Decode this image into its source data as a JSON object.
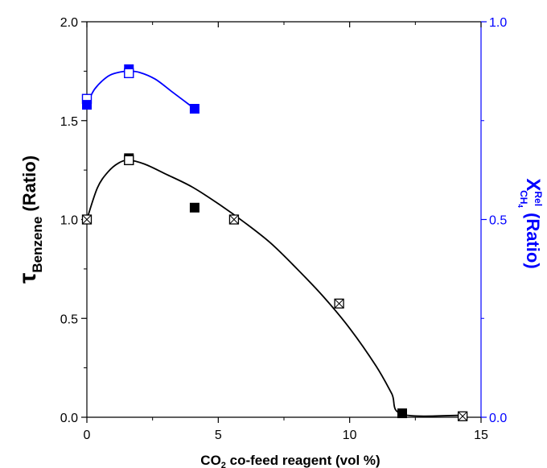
{
  "chart_data": {
    "type": "scatter",
    "xlabel": {
      "main": "CO",
      "sub": "2",
      "rest": " co-feed reagent (vol %)"
    },
    "ylabel_left": {
      "sym": "τ",
      "sub": "Benzene",
      "rest": " (Ratio)"
    },
    "ylabel_right": {
      "sym": "X",
      "sup": "Rel",
      "sub": "CH",
      "subsub": "4",
      "rest": " (Ratio)"
    },
    "xlim": [
      0,
      15
    ],
    "ylim_left": [
      0,
      2.0
    ],
    "ylim_right": [
      0,
      1.0
    ],
    "x_ticks": [
      "0",
      "5",
      "10",
      "15"
    ],
    "y_left_ticks": [
      "0.0",
      "0.5",
      "1.0",
      "1.5",
      "2.0"
    ],
    "y_right_ticks": [
      "0.0",
      "0.5",
      "1.0"
    ],
    "colors": {
      "left_axis": "#000000",
      "right_axis": "#0000ff",
      "right_label": "#0000ff"
    },
    "series": [
      {
        "axis": "left",
        "color": "#000000",
        "points": [
          {
            "x": 0.0,
            "y": 1.0,
            "marker": "square-cross"
          },
          {
            "x": 1.6,
            "y": 1.31,
            "marker": "square-filled"
          },
          {
            "x": 1.6,
            "y": 1.3,
            "marker": "square-open"
          },
          {
            "x": 4.1,
            "y": 1.06,
            "marker": "square-filled"
          },
          {
            "x": 5.6,
            "y": 1.0,
            "marker": "square-cross"
          },
          {
            "x": 9.6,
            "y": 0.575,
            "marker": "square-cross"
          },
          {
            "x": 12.0,
            "y": 0.02,
            "marker": "square-filled"
          },
          {
            "x": 14.3,
            "y": 0.005,
            "marker": "square-cross"
          }
        ],
        "curve": [
          [
            0,
            1.0
          ],
          [
            0.4,
            1.16
          ],
          [
            0.8,
            1.24
          ],
          [
            1.2,
            1.285
          ],
          [
            1.6,
            1.3
          ],
          [
            2.2,
            1.28
          ],
          [
            3.0,
            1.23
          ],
          [
            4.0,
            1.165
          ],
          [
            5.0,
            1.08
          ],
          [
            6.0,
            0.985
          ],
          [
            7.0,
            0.88
          ],
          [
            8.0,
            0.75
          ],
          [
            9.0,
            0.61
          ],
          [
            10.0,
            0.45
          ],
          [
            11.0,
            0.26
          ],
          [
            11.6,
            0.12
          ],
          [
            12.0,
            0.015
          ],
          [
            14.3,
            0.01
          ]
        ]
      },
      {
        "axis": "right",
        "color": "#0000ff",
        "points": [
          {
            "x": 0.0,
            "y": 0.805,
            "marker": "square-open"
          },
          {
            "x": 0.0,
            "y": 0.79,
            "marker": "square-filled"
          },
          {
            "x": 1.6,
            "y": 0.88,
            "marker": "square-filled"
          },
          {
            "x": 1.6,
            "y": 0.87,
            "marker": "square-open"
          },
          {
            "x": 4.1,
            "y": 0.78,
            "marker": "square-filled"
          }
        ],
        "curve": [
          [
            0,
            0.79
          ],
          [
            0.3,
            0.83
          ],
          [
            0.8,
            0.862
          ],
          [
            1.2,
            0.872
          ],
          [
            1.6,
            0.875
          ],
          [
            2.0,
            0.872
          ],
          [
            2.6,
            0.855
          ],
          [
            3.2,
            0.825
          ],
          [
            3.7,
            0.8
          ],
          [
            4.1,
            0.78
          ]
        ]
      }
    ]
  }
}
